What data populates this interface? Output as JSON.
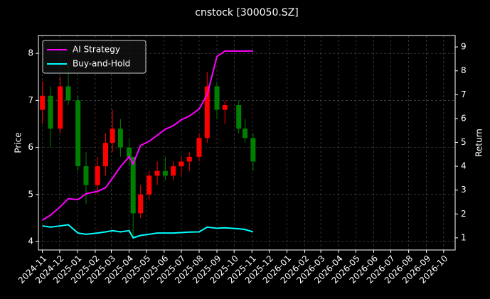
{
  "chart_data": {
    "type": "candlestick",
    "title": "cnstock [300050.SZ]",
    "y_label": "Price",
    "y2_label": "Return",
    "x": [
      "2024-11-01",
      "2024-11-15",
      "2024-12-02",
      "2024-12-16",
      "2025-01-02",
      "2025-01-16",
      "2025-02-05",
      "2025-02-19",
      "2025-03-03",
      "2025-03-17",
      "2025-04-01",
      "2025-04-08",
      "2025-04-21",
      "2025-05-06",
      "2025-05-20",
      "2025-06-03",
      "2025-06-17",
      "2025-07-01",
      "2025-07-15",
      "2025-08-01",
      "2025-08-15",
      "2025-09-01",
      "2025-09-15",
      "2025-10-09",
      "2025-10-20",
      "2025-11-03"
    ],
    "open": [
      6.8,
      7.1,
      6.4,
      7.3,
      7.0,
      5.6,
      5.2,
      5.6,
      6.1,
      6.4,
      6.0,
      5.8,
      4.6,
      5.0,
      5.4,
      5.5,
      5.4,
      5.6,
      5.7,
      5.8,
      6.2,
      7.3,
      6.8,
      6.9,
      6.4,
      6.2
    ],
    "high": [
      7.4,
      7.3,
      7.5,
      7.8,
      7.1,
      5.9,
      5.8,
      6.3,
      6.8,
      6.6,
      6.2,
      5.8,
      5.2,
      5.5,
      5.7,
      5.8,
      5.7,
      5.8,
      5.9,
      6.3,
      7.6,
      7.4,
      7.0,
      7.0,
      6.6,
      6.3
    ],
    "low": [
      6.5,
      6.0,
      6.3,
      6.9,
      5.5,
      4.8,
      5.0,
      5.4,
      5.9,
      5.8,
      5.6,
      4.1,
      4.5,
      4.9,
      5.2,
      5.3,
      5.3,
      5.4,
      5.5,
      5.7,
      6.1,
      6.6,
      6.5,
      6.3,
      6.1,
      5.5
    ],
    "close": [
      7.1,
      6.4,
      7.3,
      7.0,
      5.6,
      5.2,
      5.6,
      6.1,
      6.4,
      6.0,
      5.8,
      4.6,
      5.0,
      5.4,
      5.5,
      5.4,
      5.6,
      5.7,
      5.8,
      6.2,
      7.3,
      6.8,
      6.9,
      6.4,
      6.2,
      5.7
    ],
    "up_color": "#ff0000",
    "down_color": "#008000",
    "series": [
      {
        "name": "AI Strategy",
        "color": "#ff00ff",
        "axis": "y2",
        "values": [
          1.74,
          1.95,
          2.3,
          2.64,
          2.6,
          2.85,
          2.95,
          3.1,
          3.5,
          3.98,
          4.4,
          4.1,
          4.87,
          5.05,
          5.3,
          5.55,
          5.7,
          5.95,
          6.1,
          6.4,
          7.0,
          8.6,
          8.83,
          8.83,
          8.83,
          8.83
        ]
      },
      {
        "name": "Buy-and-Hold",
        "color": "#00ffff",
        "axis": "y2",
        "values": [
          1.5,
          1.45,
          1.5,
          1.55,
          1.2,
          1.15,
          1.2,
          1.25,
          1.3,
          1.25,
          1.3,
          1.0,
          1.1,
          1.15,
          1.2,
          1.2,
          1.2,
          1.22,
          1.24,
          1.25,
          1.45,
          1.4,
          1.42,
          1.38,
          1.35,
          1.25
        ]
      }
    ],
    "xlim": [
      "2024-10-25",
      "2026-10-21"
    ],
    "xticks": [
      "2024-11",
      "2024-12",
      "2025-01",
      "2025-02",
      "2025-03",
      "2025-04",
      "2025-05",
      "2025-06",
      "2025-07",
      "2025-08",
      "2025-09",
      "2025-10",
      "2025-11",
      "2025-12",
      "2026-01",
      "2026-02",
      "2026-03",
      "2026-04",
      "2026-05",
      "2026-06",
      "2026-07",
      "2026-08",
      "2026-09",
      "2026-10"
    ],
    "ylim": [
      3.82,
      8.38
    ],
    "yticks": [
      4,
      5,
      6,
      7,
      8
    ],
    "y2lim": [
      0.49,
      9.48
    ],
    "y2ticks": [
      1,
      2,
      3,
      4,
      5,
      6,
      7,
      8,
      9
    ],
    "grid": true,
    "legend": "upper left"
  }
}
